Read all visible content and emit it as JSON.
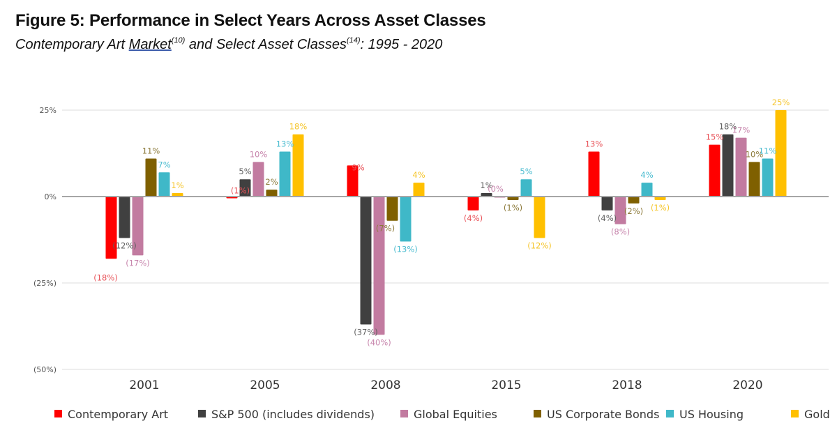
{
  "header": {
    "title": "Figure 5: Performance in Select Years Across Asset Classes",
    "subtitle_part1": "Contemporary Art ",
    "subtitle_link": "Market",
    "subtitle_sup1": "(10)",
    "subtitle_part2": " and Select Asset Classes",
    "subtitle_sup2": "(14)",
    "subtitle_part3": ": 1995 - 2020"
  },
  "chart_data": {
    "type": "bar",
    "title": "Figure 5: Performance in Select Years Across Asset Classes",
    "subtitle": "Contemporary Art Market(10) and Select Asset Classes(14): 1995 - 2020",
    "xlabel": "",
    "ylabel": "",
    "categories": [
      "2001",
      "2005",
      "2008",
      "2015",
      "2018",
      "2020"
    ],
    "ylim": [
      -50,
      25
    ],
    "yticks": [
      25,
      0,
      -25,
      -50
    ],
    "ytick_labels": [
      "25%",
      "0%",
      "(25%)",
      "(50%)"
    ],
    "grid": true,
    "legend_position": "bottom",
    "series": [
      {
        "name": "Contemporary Art",
        "color": "#ff0000",
        "label_color": "#e8545a",
        "values": [
          -18,
          -0.5,
          9,
          -4,
          13,
          15
        ],
        "labels": [
          "(18%)",
          "(1%)",
          "9%",
          "(4%)",
          "13%",
          "15%"
        ]
      },
      {
        "name": "S&P 500 (includes dividends)",
        "color": "#404040",
        "label_color": "#606060",
        "values": [
          -12,
          5,
          -37,
          1,
          -4,
          18
        ],
        "labels": [
          "(12%)",
          "5%",
          "(37%)",
          "1%",
          "(4%)",
          "18%"
        ]
      },
      {
        "name": "Global Equities",
        "color": "#c27ba0",
        "label_color": "#c785ac",
        "values": [
          -17,
          10,
          -40,
          0,
          -8,
          17
        ],
        "labels": [
          "(17%)",
          "10%",
          "(40%)",
          "(0%",
          "(8%)",
          "17%"
        ]
      },
      {
        "name": "US Corporate Bonds",
        "color": "#7f6000",
        "label_color": "#8c7a3a",
        "values": [
          11,
          2,
          -7,
          -1,
          -2,
          10
        ],
        "labels": [
          "11%",
          "2%",
          "(7%)",
          "(1%)",
          "(2%)",
          "10%"
        ]
      },
      {
        "name": "US Housing",
        "color": "#3fb8c8",
        "label_color": "#4bbcd0",
        "values": [
          7,
          13,
          -13,
          5,
          4,
          11
        ],
        "labels": [
          "7%",
          "13%",
          "(13%)",
          "5%",
          "4%",
          "11%"
        ]
      },
      {
        "name": "Gold",
        "color": "#ffc000",
        "label_color": "#f5c52a",
        "values": [
          1,
          18,
          4,
          -12,
          -1,
          25
        ],
        "labels": [
          "1%",
          "18%",
          "4%",
          "(12%)",
          "(1%)",
          "25%"
        ]
      }
    ]
  }
}
